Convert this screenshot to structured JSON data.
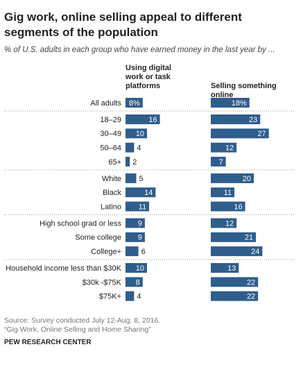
{
  "chart_data": {
    "type": "bar",
    "orientation": "horizontal",
    "title": "Gig work, online selling appeal to different segments of the population",
    "subtitle": "% of U.S. adults in each group who have earned money in the last year by ...",
    "categories": [
      "All adults",
      "18–29",
      "30–49",
      "50–64",
      "65+",
      "White",
      "Black",
      "Latino",
      "High school grad or less",
      "Some college",
      "College+",
      "Household income less than $30K",
      "$30k -$75K",
      "$75K+"
    ],
    "series": [
      {
        "name": "Using digital work or task platforms",
        "color": "#2f5d8c",
        "values": [
          8,
          16,
          10,
          4,
          2,
          5,
          14,
          11,
          9,
          9,
          6,
          10,
          8,
          4
        ],
        "value_labels": [
          "8%",
          "16",
          "10",
          "4",
          "2",
          "5",
          "14",
          "11",
          "9",
          "9",
          "6",
          "10",
          "8",
          "4"
        ]
      },
      {
        "name": "Selling something online",
        "color": "#2f5d8c",
        "values": [
          18,
          23,
          27,
          12,
          7,
          20,
          11,
          16,
          12,
          21,
          24,
          13,
          22,
          22
        ],
        "value_labels": [
          "18%",
          "23",
          "27",
          "12",
          "7",
          "20",
          "11",
          "16",
          "12",
          "21",
          "24",
          "13",
          "22",
          "22"
        ]
      }
    ],
    "source": "Source: Survey conducted July 12-Aug. 8, 2016.",
    "source_note": "“Gig Work, Online Selling and Home Sharing”",
    "footer": "PEW RESEARCH CENTER"
  }
}
